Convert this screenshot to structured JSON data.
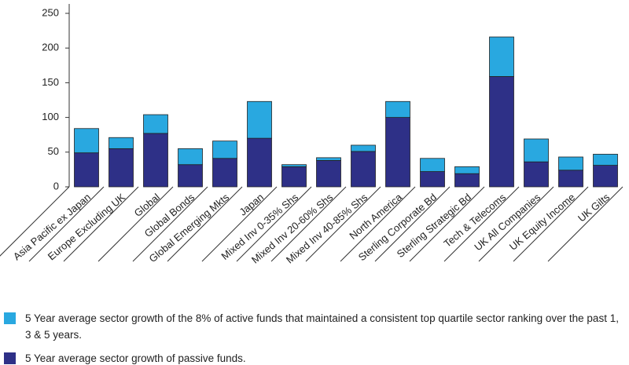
{
  "chart_data": {
    "type": "stacked_bar",
    "categories": [
      "Asia Pacific ex Japan",
      "Europe Excluding UK",
      "Global",
      "Global Bonds",
      "Global Emerging Mkts",
      "Japan",
      "Mixed Inv 0-35% Shs",
      "Mixed Inv 20-60% Shs",
      "Mixed Inv 40-85% Shs",
      "North America",
      "Sterling Corporate Bd",
      "Sterling Strategic Bd",
      "Tech & Telecoms",
      "UK All Companies",
      "UK Equity Income",
      "UK Gilts"
    ],
    "series": [
      {
        "name": "5 Year average sector growth of passive funds.",
        "color": "#2e3087",
        "values": [
          49,
          55,
          77,
          32,
          41,
          70,
          29,
          38,
          51,
          100,
          22,
          19,
          159,
          36,
          24,
          31
        ]
      },
      {
        "name": "5 Year average sector growth of the 8% of active funds that maintained a consistent top quartile sector ranking over the past 1, 3 & 5 years.",
        "color": "#29a8e0",
        "values": [
          35,
          16,
          27,
          23,
          25,
          53,
          3,
          4,
          9,
          23,
          19,
          10,
          57,
          33,
          19,
          16
        ]
      }
    ],
    "ylim": [
      0,
      250
    ],
    "yticks": [
      0,
      50,
      100,
      150,
      200,
      250
    ],
    "grid": false
  }
}
